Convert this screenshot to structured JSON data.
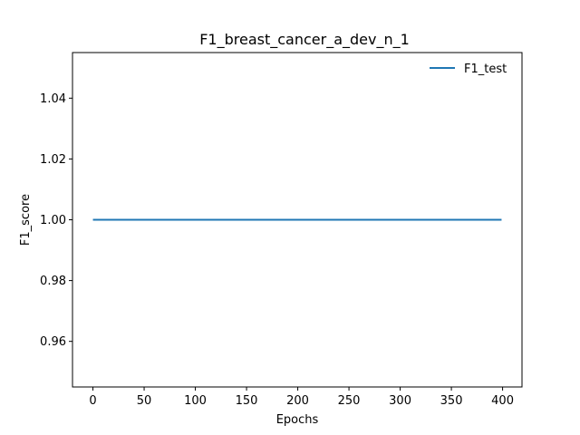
{
  "chart_data": {
    "type": "line",
    "title": "F1_breast_cancer_a_dev_n_1",
    "xlabel": "Epochs",
    "ylabel": "F1_score",
    "xlim": [
      -19.95,
      418.95
    ],
    "ylim": [
      0.945,
      1.055
    ],
    "xticks": [
      0,
      50,
      100,
      150,
      200,
      250,
      300,
      350,
      400
    ],
    "yticks": [
      0.96,
      0.98,
      1.0,
      1.02,
      1.04
    ],
    "ytick_labels": [
      "0.96",
      "0.98",
      "1.00",
      "1.02",
      "1.04"
    ],
    "grid": false,
    "legend_position": "top-right",
    "series": [
      {
        "name": "F1_test",
        "color": "#1f77b4",
        "x": [
          0,
          399
        ],
        "y": [
          1.0,
          1.0
        ]
      }
    ]
  }
}
